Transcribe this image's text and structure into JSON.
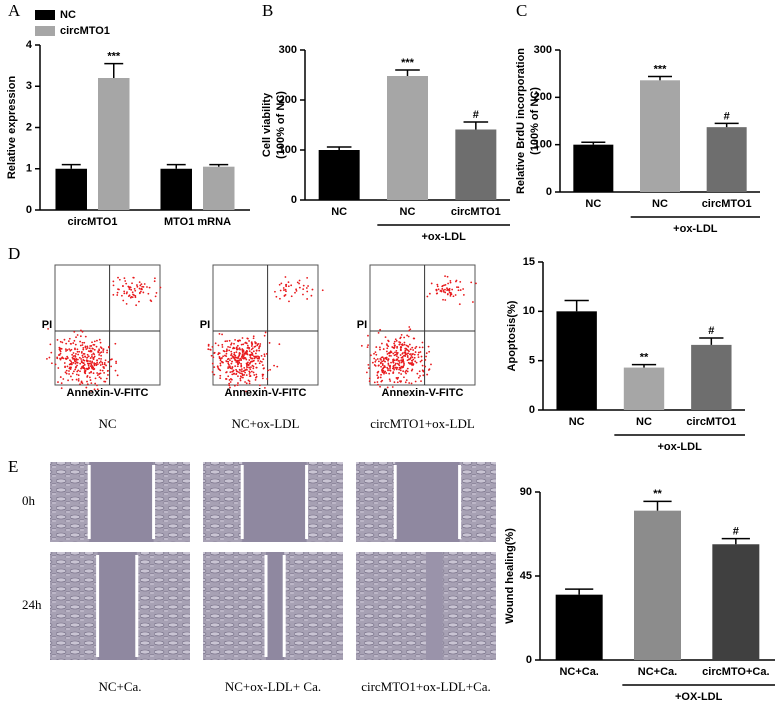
{
  "chart_data": [
    {
      "type": "bar",
      "panel_label": "A",
      "y_label": [
        "Relative expression"
      ],
      "categories": [
        "circMTO1",
        "MTO1 mRNA"
      ],
      "series": [
        {
          "name": "NC",
          "color": "#000000",
          "values": [
            1.0,
            1.0
          ],
          "errors": [
            0.1,
            0.1
          ],
          "annotations": [
            null,
            null
          ]
        },
        {
          "name": "circMTO1",
          "color": "#a6a6a6",
          "values": [
            3.2,
            1.05
          ],
          "errors": [
            0.35,
            0.05
          ],
          "annotations": [
            "***",
            null
          ]
        }
      ],
      "ylim": [
        0,
        4
      ],
      "yticks": [
        0,
        1,
        2,
        3,
        4
      ]
    },
    {
      "type": "bar",
      "panel_label": "B",
      "y_label": [
        "Cell viability",
        "(100% of NC)"
      ],
      "categories": [
        "NC",
        "NC",
        "circMTO1"
      ],
      "values": [
        100,
        248,
        141
      ],
      "errors": [
        6,
        12,
        15
      ],
      "annotations": [
        null,
        "***",
        "#"
      ],
      "colors": [
        "#000000",
        "#a6a6a6",
        "#6e6e6e"
      ],
      "group_label": "+ox-LDL",
      "ylim": [
        0,
        300
      ],
      "yticks": [
        0,
        100,
        200,
        300
      ]
    },
    {
      "type": "bar",
      "panel_label": "C",
      "y_label": [
        "Relative BrdU incorporation",
        "(100% of NC)"
      ],
      "categories": [
        "NC",
        "NC",
        "circMTO1"
      ],
      "values": [
        100,
        236,
        137
      ],
      "errors": [
        5,
        8,
        8
      ],
      "annotations": [
        null,
        "***",
        "#"
      ],
      "colors": [
        "#000000",
        "#a6a6a6",
        "#6e6e6e"
      ],
      "group_label": "+ox-LDL",
      "ylim": [
        0,
        300
      ],
      "yticks": [
        0,
        100,
        200,
        300
      ]
    },
    {
      "type": "bar",
      "panel_label": "D",
      "y_label": [
        "Apoptosis(%)"
      ],
      "categories": [
        "NC",
        "NC",
        "circMTO1"
      ],
      "values": [
        10.0,
        4.3,
        6.6
      ],
      "errors": [
        1.1,
        0.3,
        0.7
      ],
      "annotations": [
        null,
        "**",
        "#"
      ],
      "colors": [
        "#000000",
        "#a6a6a6",
        "#6e6e6e"
      ],
      "group_label": "+ox-LDL",
      "ylim": [
        0,
        15
      ],
      "yticks": [
        0,
        5,
        10,
        15
      ]
    },
    {
      "type": "bar",
      "panel_label": "E",
      "y_label": [
        "Wound healing(%)"
      ],
      "categories": [
        "NC+Ca.",
        "NC+Ca.",
        "circMTO+Ca."
      ],
      "values": [
        35,
        80,
        62
      ],
      "errors": [
        3,
        5,
        3
      ],
      "annotations": [
        null,
        "**",
        "#"
      ],
      "colors": [
        "#000000",
        "#8c8c8c",
        "#404040"
      ],
      "group_label": "+OX-LDL",
      "ylim": [
        0,
        90
      ],
      "yticks": [
        0,
        45,
        90
      ]
    }
  ],
  "flow_cytometry": {
    "x_label": "Annexin-V-FITC",
    "y_label": "PI",
    "plots": [
      "NC",
      "NC+ox-LDL",
      "circMTO1+ox-LDL"
    ]
  },
  "wound_images": {
    "rows": [
      "0h",
      "24h"
    ],
    "columns": [
      "NC+Ca.",
      "NC+ox-LDL+ Ca.",
      "circMTO1+ox-LDL+Ca."
    ]
  }
}
